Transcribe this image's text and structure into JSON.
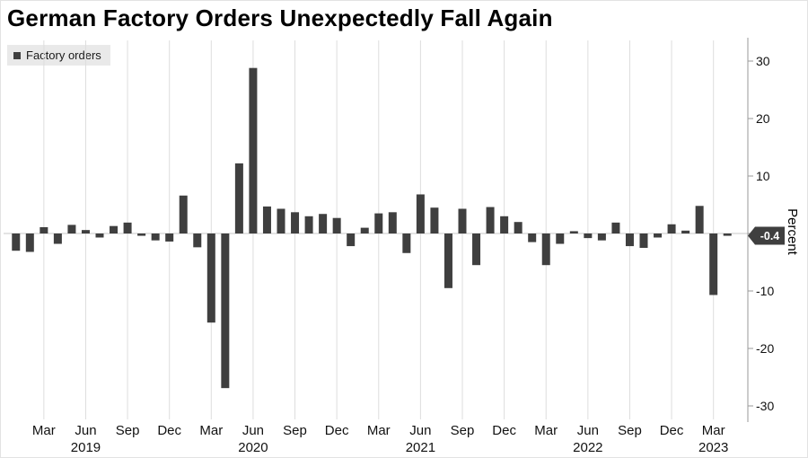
{
  "header": {
    "title": "German Factory Orders Unexpectedly Fall Again"
  },
  "legend": {
    "label": "Factory orders",
    "swatch_color": "#3f3f3f"
  },
  "axis": {
    "y_label": "Percent",
    "last_value_label": "-0.4"
  },
  "chart_data": {
    "type": "bar",
    "title": "German Factory Orders Unexpectedly Fall Again",
    "series_name": "Factory orders",
    "bar_color": "#3f3f3f",
    "ylabel": "Percent",
    "ylim": [
      -33,
      33
    ],
    "y_ticks": [
      30,
      20,
      10,
      0,
      -10,
      -20,
      -30
    ],
    "grid": true,
    "legend_position": "top-left",
    "x_tick_months": [
      "Mar",
      "Jun",
      "Sep",
      "Dec"
    ],
    "year_label_anchor": {
      "2019": "Jun 2019",
      "2020": "Jun 2020",
      "2021": "Jun 2021",
      "2022": "Jun 2022",
      "2023": "Mar 2023"
    },
    "latest_value": -0.4,
    "x": [
      "Jan 2019",
      "Feb 2019",
      "Mar 2019",
      "Apr 2019",
      "May 2019",
      "Jun 2019",
      "Jul 2019",
      "Aug 2019",
      "Sep 2019",
      "Oct 2019",
      "Nov 2019",
      "Dec 2019",
      "Jan 2020",
      "Feb 2020",
      "Mar 2020",
      "Apr 2020",
      "May 2020",
      "Jun 2020",
      "Jul 2020",
      "Aug 2020",
      "Sep 2020",
      "Oct 2020",
      "Nov 2020",
      "Dec 2020",
      "Jan 2021",
      "Feb 2021",
      "Mar 2021",
      "Apr 2021",
      "May 2021",
      "Jun 2021",
      "Jul 2021",
      "Aug 2021",
      "Sep 2021",
      "Oct 2021",
      "Nov 2021",
      "Dec 2021",
      "Jan 2022",
      "Feb 2022",
      "Mar 2022",
      "Apr 2022",
      "May 2022",
      "Jun 2022",
      "Jul 2022",
      "Aug 2022",
      "Sep 2022",
      "Oct 2022",
      "Nov 2022",
      "Dec 2022",
      "Jan 2023",
      "Feb 2023",
      "Mar 2023",
      "Apr 2023"
    ],
    "values": [
      -3.0,
      -3.2,
      1.1,
      -1.8,
      1.5,
      0.6,
      -0.7,
      1.3,
      1.9,
      -0.4,
      -1.2,
      -1.4,
      6.6,
      -2.4,
      -15.5,
      -26.9,
      12.2,
      28.8,
      4.7,
      4.3,
      3.7,
      3.0,
      3.4,
      2.7,
      -2.2,
      1.0,
      3.5,
      3.7,
      -3.4,
      6.8,
      4.5,
      -9.5,
      4.3,
      -5.5,
      4.6,
      3.0,
      2.0,
      -1.5,
      -5.5,
      -1.8,
      0.4,
      -0.8,
      -1.2,
      1.9,
      -2.2,
      -2.5,
      -0.7,
      1.6,
      0.5,
      4.8,
      -10.7,
      -0.4
    ]
  }
}
